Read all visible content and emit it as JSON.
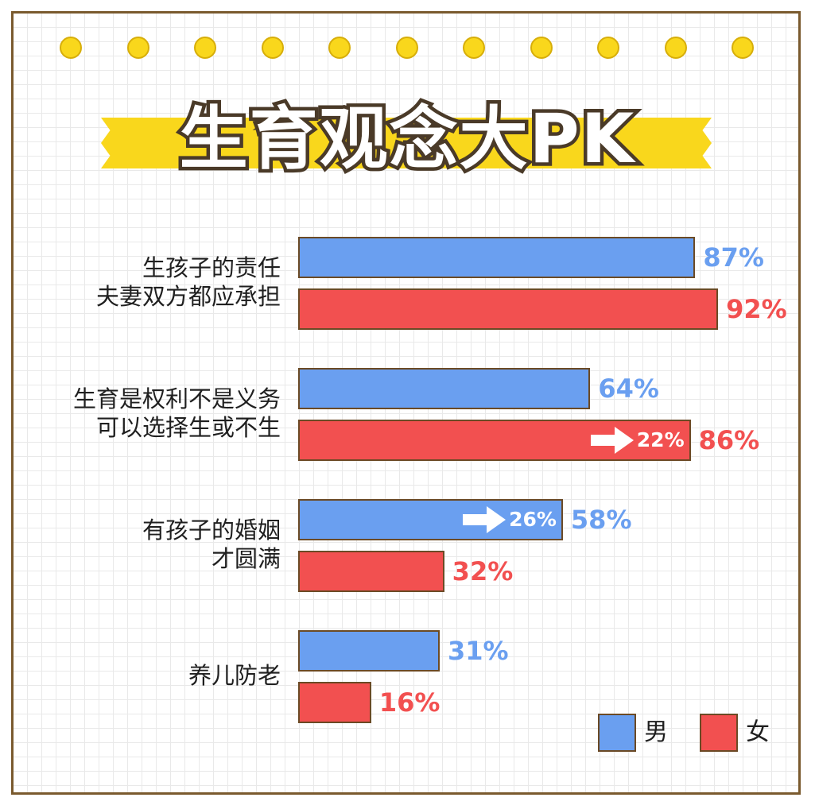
{
  "title": "生育观念大PK",
  "colors": {
    "male": "#6a9ff0",
    "female": "#f25050",
    "banner": "#f9d71c"
  },
  "chart_data": {
    "type": "bar",
    "orientation": "horizontal",
    "categories": [
      [
        "生孩子的责任",
        "夫妻双方都应承担"
      ],
      [
        "生育是权利不是义务",
        "可以选择生或不生"
      ],
      [
        "有孩子的婚姻",
        "才圆满"
      ],
      [
        "养儿防老"
      ]
    ],
    "series": [
      {
        "name": "男",
        "values": [
          87,
          64,
          58,
          31
        ],
        "labels": [
          "87%",
          "64%",
          "58%",
          "31%"
        ]
      },
      {
        "name": "女",
        "values": [
          92,
          86,
          32,
          16
        ],
        "labels": [
          "92%",
          "86%",
          "32%",
          "16%"
        ]
      }
    ],
    "annotations": [
      {
        "category_index": 1,
        "series": "女",
        "text": "22%",
        "icon": "right-arrow-icon"
      },
      {
        "category_index": 2,
        "series": "男",
        "text": "26%",
        "icon": "right-arrow-icon"
      }
    ],
    "xlim": [
      0,
      100
    ],
    "legend": "bottom-right"
  }
}
